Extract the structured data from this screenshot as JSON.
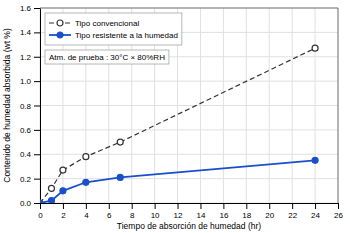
{
  "chart_data": {
    "type": "line",
    "xlabel": "Tiempo de absorción de humedad (hr)",
    "ylabel": "Contenido de humedad absorbida (wt %)",
    "annotation": "Atm. de prueba : 30°C × 80%RH",
    "x": [
      0,
      1,
      2,
      4,
      7,
      24
    ],
    "series": [
      {
        "name": "Tipo convencional",
        "color": "#333333",
        "line_style": "dashed",
        "marker": "open-circle",
        "values": [
          0.0,
          0.12,
          0.27,
          0.38,
          0.5,
          1.27
        ]
      },
      {
        "name": "Tipo resistente a la humedad",
        "color": "#1a4fcc",
        "line_style": "solid",
        "marker": "circle",
        "values": [
          0.0,
          0.02,
          0.1,
          0.17,
          0.21,
          0.35
        ]
      }
    ],
    "xlim": [
      0,
      26
    ],
    "ylim": [
      0,
      1.6
    ],
    "xticks": [
      0,
      2,
      4,
      6,
      8,
      10,
      12,
      14,
      16,
      18,
      20,
      22,
      24,
      26
    ],
    "yticks": [
      {
        "value": 0.0,
        "label": "0.0"
      },
      0.2,
      0.4,
      0.6,
      0.8,
      {
        "value": 1.0,
        "label": "1.0"
      },
      1.2,
      1.4,
      1.6
    ],
    "grid": true,
    "legend": "upper left"
  }
}
